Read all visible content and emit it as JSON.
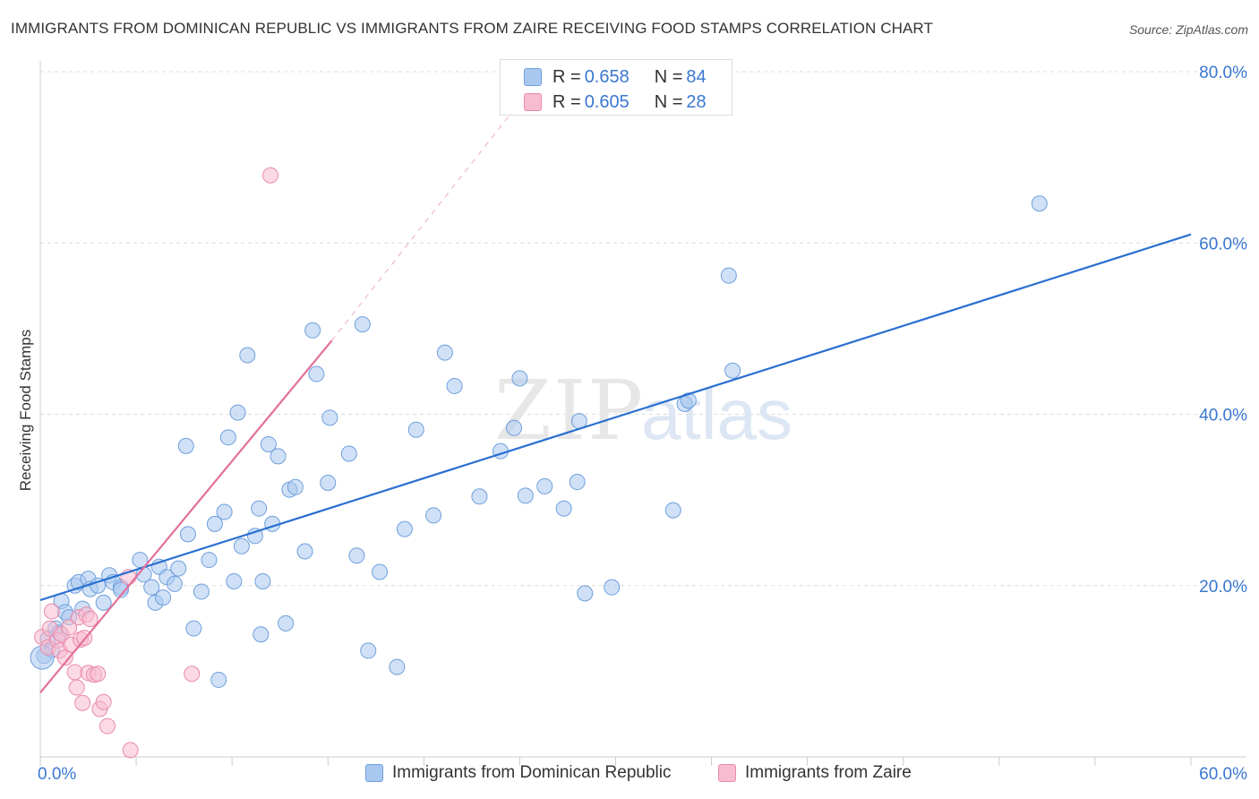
{
  "title": "IMMIGRANTS FROM DOMINICAN REPUBLIC VS IMMIGRANTS FROM ZAIRE RECEIVING FOOD STAMPS CORRELATION CHART",
  "source": "Source: ZipAtlas.com",
  "watermark": {
    "zip": "ZIP",
    "atlas": "atlas"
  },
  "legend_top": {
    "rows": [
      {
        "r_label": "R = ",
        "r_value": "0.658",
        "n_label": "N = ",
        "n_value": "84"
      },
      {
        "r_label": "R = ",
        "r_value": "0.605",
        "n_label": "N = ",
        "n_value": "28"
      }
    ]
  },
  "legend_bottom": {
    "items": [
      "Immigrants from Dominican Republic",
      "Immigrants from Zaire"
    ]
  },
  "colors": {
    "blue_fill": "#a9c8f0",
    "blue_stroke": "#6f9fdc",
    "blue_line": "#2a6fd1",
    "pink_fill": "#f7bcd0",
    "pink_stroke": "#ea8aaa",
    "pink_line": "#e3709a",
    "grid": "#dddddd",
    "tick_text": "#3a78d0"
  },
  "chart_data": {
    "type": "scatter",
    "title": "IMMIGRANTS FROM DOMINICAN REPUBLIC VS IMMIGRANTS FROM ZAIRE RECEIVING FOOD STAMPS CORRELATION CHART",
    "xlabel": "",
    "ylabel": "Receiving Food Stamps",
    "xlim": [
      0,
      60
    ],
    "ylim": [
      0,
      80
    ],
    "x_tick_labels": [
      "0.0%",
      "60.0%"
    ],
    "y_ticks": [
      20,
      40,
      60,
      80
    ],
    "y_tick_labels": [
      "20.0%",
      "40.0%",
      "60.0%",
      "80.0%"
    ],
    "legend_position": "top-center",
    "series": [
      {
        "name": "Immigrants from Dominican Republic",
        "color": "#a9c8f0",
        "R": 0.658,
        "N": 84,
        "trend": {
          "x": [
            0,
            60
          ],
          "y": [
            18.3,
            61.0
          ],
          "style": "solid"
        },
        "points": [
          [
            0.2,
            11.8
          ],
          [
            0.4,
            13.8
          ],
          [
            0.6,
            12.5
          ],
          [
            0.8,
            15.0
          ],
          [
            1.0,
            14.5
          ],
          [
            1.1,
            18.2
          ],
          [
            1.3,
            16.9
          ],
          [
            1.5,
            16.3
          ],
          [
            1.8,
            20.0
          ],
          [
            2.0,
            20.4
          ],
          [
            2.2,
            17.3
          ],
          [
            2.5,
            20.8
          ],
          [
            2.6,
            19.6
          ],
          [
            3.0,
            20.0
          ],
          [
            3.3,
            18.0
          ],
          [
            3.6,
            21.2
          ],
          [
            3.8,
            20.4
          ],
          [
            4.2,
            19.8
          ],
          [
            4.2,
            19.5
          ],
          [
            5.2,
            23.0
          ],
          [
            5.4,
            21.3
          ],
          [
            5.8,
            19.8
          ],
          [
            6.0,
            18.0
          ],
          [
            6.2,
            22.2
          ],
          [
            6.4,
            18.6
          ],
          [
            6.6,
            21.0
          ],
          [
            7.0,
            20.2
          ],
          [
            7.2,
            22.0
          ],
          [
            7.7,
            26.0
          ],
          [
            7.6,
            36.3
          ],
          [
            8.0,
            15.0
          ],
          [
            8.4,
            19.3
          ],
          [
            8.8,
            23.0
          ],
          [
            9.1,
            27.2
          ],
          [
            9.3,
            9.0
          ],
          [
            9.6,
            28.6
          ],
          [
            9.8,
            37.3
          ],
          [
            10.1,
            20.5
          ],
          [
            10.3,
            40.2
          ],
          [
            10.5,
            24.6
          ],
          [
            10.8,
            46.9
          ],
          [
            11.2,
            25.8
          ],
          [
            11.4,
            29.0
          ],
          [
            11.5,
            14.3
          ],
          [
            11.6,
            20.5
          ],
          [
            11.9,
            36.5
          ],
          [
            12.1,
            27.2
          ],
          [
            12.4,
            35.1
          ],
          [
            12.8,
            15.6
          ],
          [
            13.0,
            31.2
          ],
          [
            13.3,
            31.5
          ],
          [
            13.8,
            24.0
          ],
          [
            14.2,
            49.8
          ],
          [
            14.4,
            44.7
          ],
          [
            15.0,
            32.0
          ],
          [
            15.1,
            39.6
          ],
          [
            16.1,
            35.4
          ],
          [
            16.5,
            23.5
          ],
          [
            16.8,
            50.5
          ],
          [
            17.1,
            12.4
          ],
          [
            17.7,
            21.6
          ],
          [
            18.6,
            10.5
          ],
          [
            19.0,
            26.6
          ],
          [
            19.6,
            38.2
          ],
          [
            20.5,
            28.2
          ],
          [
            21.1,
            47.2
          ],
          [
            21.6,
            43.3
          ],
          [
            22.9,
            30.4
          ],
          [
            24.0,
            35.7
          ],
          [
            24.7,
            38.4
          ],
          [
            25.0,
            44.2
          ],
          [
            25.3,
            30.5
          ],
          [
            26.3,
            31.6
          ],
          [
            27.3,
            29.0
          ],
          [
            28.0,
            32.1
          ],
          [
            28.1,
            39.2
          ],
          [
            28.4,
            19.1
          ],
          [
            29.8,
            19.8
          ],
          [
            33.0,
            28.8
          ],
          [
            33.6,
            41.2
          ],
          [
            33.8,
            41.6
          ],
          [
            35.9,
            56.2
          ],
          [
            36.1,
            45.1
          ],
          [
            52.1,
            64.6
          ]
        ]
      },
      {
        "name": "Immigrants from Zaire",
        "color": "#f7bcd0",
        "R": 0.605,
        "N": 28,
        "trend": {
          "x": [
            0,
            15.2
          ],
          "y": [
            7.5,
            48.6
          ],
          "style": "solid",
          "dashed_extension_to": [
            24.5,
            75.0
          ]
        },
        "points": [
          [
            0.1,
            14.0
          ],
          [
            0.4,
            12.8
          ],
          [
            0.5,
            15.0
          ],
          [
            0.6,
            17.0
          ],
          [
            0.9,
            13.6
          ],
          [
            1.0,
            12.4
          ],
          [
            1.1,
            14.3
          ],
          [
            1.3,
            11.6
          ],
          [
            1.5,
            15.1
          ],
          [
            1.6,
            13.1
          ],
          [
            1.8,
            9.9
          ],
          [
            1.9,
            8.1
          ],
          [
            2.0,
            16.3
          ],
          [
            2.1,
            13.7
          ],
          [
            2.2,
            6.3
          ],
          [
            2.3,
            13.9
          ],
          [
            2.4,
            16.6
          ],
          [
            2.5,
            9.8
          ],
          [
            2.6,
            16.1
          ],
          [
            2.8,
            9.6
          ],
          [
            3.0,
            9.7
          ],
          [
            3.1,
            5.6
          ],
          [
            3.3,
            6.4
          ],
          [
            3.5,
            3.6
          ],
          [
            4.6,
            21.0
          ],
          [
            4.7,
            0.8
          ],
          [
            7.9,
            9.7
          ],
          [
            12.0,
            67.9
          ]
        ]
      }
    ]
  }
}
